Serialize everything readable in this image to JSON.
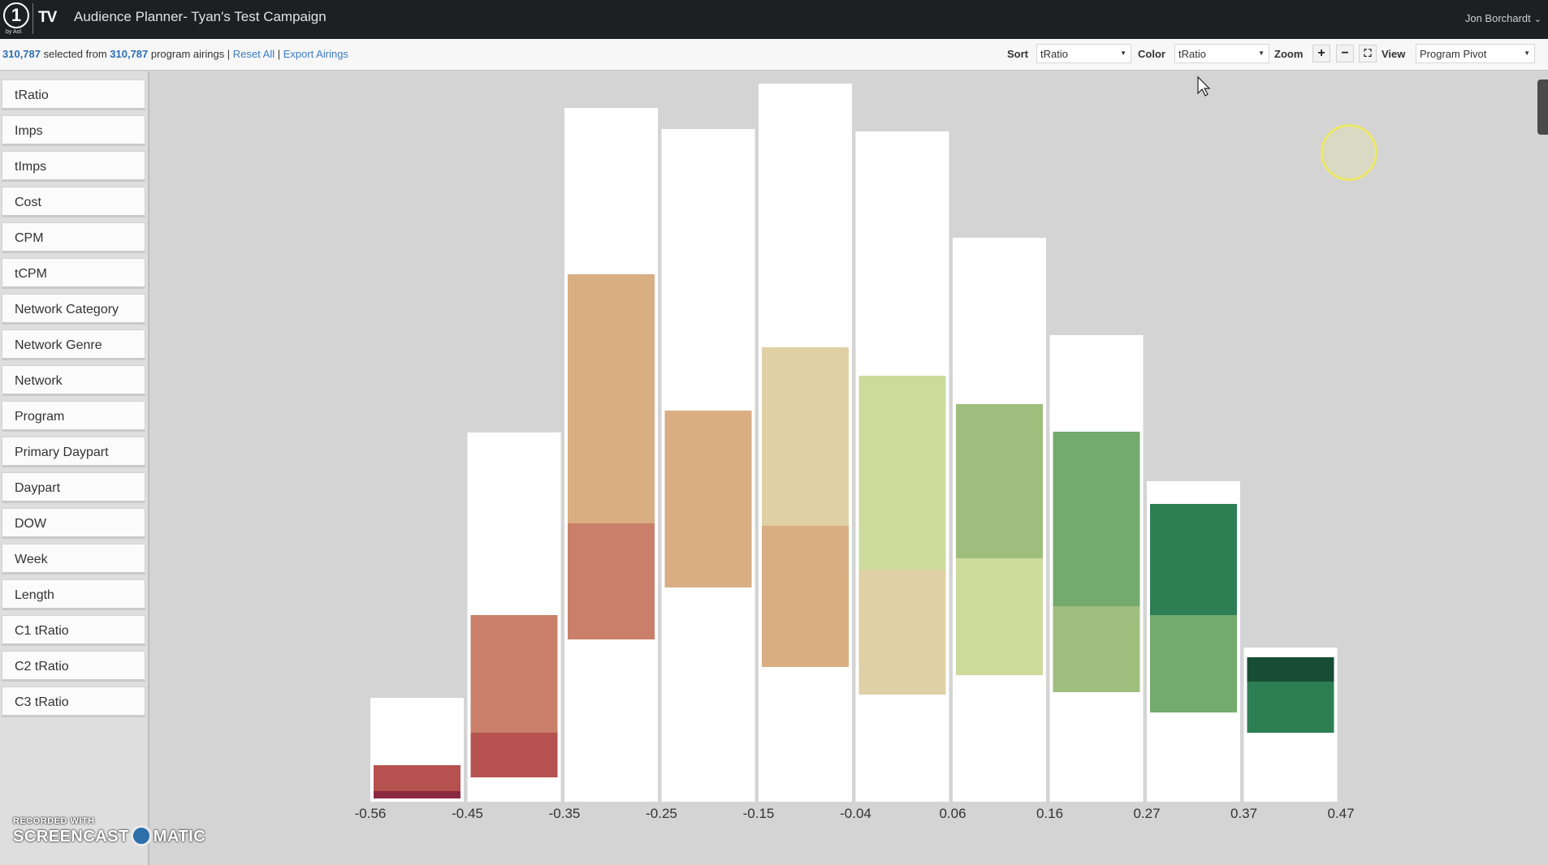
{
  "topbar": {
    "logo_number": "1",
    "logo_sub": "by Aol.",
    "logo_tv": "TV",
    "title": "Audience Planner- Tyan's Test Campaign",
    "user": "Jon Borchardt",
    "user_chevron": "⌄"
  },
  "toolbar": {
    "selected_count": "310,787",
    "selected_text": " selected from ",
    "total_count": "310,787",
    "airings_text": " program airings | ",
    "reset_label": "Reset All",
    "separator": " | ",
    "export_label": "Export Airings",
    "sort_label": "Sort",
    "sort_value": "tRatio",
    "color_label": "Color",
    "color_value": "tRatio",
    "zoom_label": "Zoom",
    "zoom_in_icon": "+",
    "zoom_out_icon": "−",
    "fullscreen_icon": "⛶",
    "view_label": "View",
    "view_value": "Program Pivot",
    "dropdown_arrow": "▼"
  },
  "sidebar": {
    "items": [
      "tRatio",
      "Imps",
      "tImps",
      "Cost",
      "CPM",
      "tCPM",
      "Network Category",
      "Network Genre",
      "Network",
      "Program",
      "Primary Daypart",
      "Daypart",
      "DOW",
      "Week",
      "Length",
      "C1 tRatio",
      "C2 tRatio",
      "C3 tRatio"
    ]
  },
  "chart_data": {
    "type": "bar",
    "x_ticks": [
      "-0.56",
      "-0.45",
      "-0.35",
      "-0.25",
      "-0.15",
      "-0.04",
      "0.06",
      "0.16",
      "0.27",
      "0.37",
      "0.47"
    ],
    "bins": [
      {
        "total": 128,
        "segments": [
          {
            "from": 4,
            "to": 13,
            "color": "#8a2840"
          },
          {
            "from": 13,
            "to": 45,
            "color": "#b5524f"
          }
        ]
      },
      {
        "total": 455,
        "segments": [
          {
            "from": 30,
            "to": 85,
            "color": "#b5524f"
          },
          {
            "from": 85,
            "to": 230,
            "color": "#c97f69"
          }
        ]
      },
      {
        "total": 855,
        "segments": [
          {
            "from": 200,
            "to": 343,
            "color": "#c97f69"
          },
          {
            "from": 343,
            "to": 650,
            "color": "#d9ae82"
          }
        ]
      },
      {
        "total": 829,
        "segments": [
          {
            "from": 264,
            "to": 482,
            "color": "#d9ae82"
          }
        ]
      },
      {
        "total": 885,
        "segments": [
          {
            "from": 166,
            "to": 340,
            "color": "#d9ae82"
          },
          {
            "from": 340,
            "to": 560,
            "color": "#e0d0a6"
          }
        ]
      },
      {
        "total": 826,
        "segments": [
          {
            "from": 132,
            "to": 286,
            "color": "#e0d0a6"
          },
          {
            "from": 286,
            "to": 525,
            "color": "#ccdb9c"
          }
        ]
      },
      {
        "total": 695,
        "segments": [
          {
            "from": 156,
            "to": 300,
            "color": "#ccdb9c"
          },
          {
            "from": 300,
            "to": 490,
            "color": "#9fbe7d"
          }
        ]
      },
      {
        "total": 575,
        "segments": [
          {
            "from": 135,
            "to": 241,
            "color": "#9fbe7d"
          },
          {
            "from": 241,
            "to": 456,
            "color": "#74aa6d"
          }
        ]
      },
      {
        "total": 395,
        "segments": [
          {
            "from": 110,
            "to": 230,
            "color": "#74aa6d"
          },
          {
            "from": 230,
            "to": 367,
            "color": "#2e7e54"
          }
        ]
      },
      {
        "total": 190,
        "segments": [
          {
            "from": 85,
            "to": 148,
            "color": "#2e7e54"
          },
          {
            "from": 148,
            "to": 178,
            "color": "#164d33"
          }
        ]
      }
    ],
    "ylim": [
      0,
      900
    ],
    "grid": false,
    "legend": "none"
  },
  "watermark": {
    "top": "RECORDED WITH",
    "left": "SCREENCAST",
    "right": "MATIC"
  }
}
